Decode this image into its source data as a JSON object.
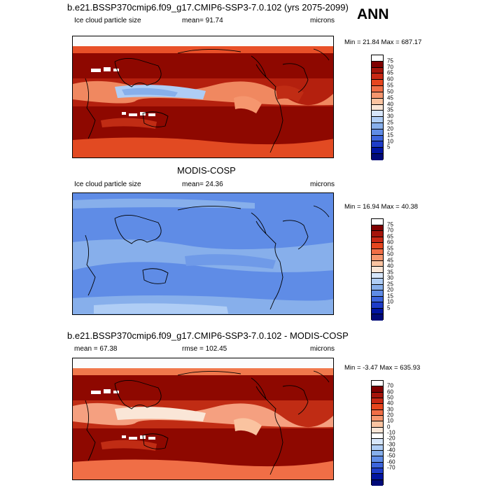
{
  "header": {
    "case_title": "b.e21.BSSP370cmip6.f09_g17.CMIP6-SSP3-7.0.102 (yrs 2075-2099)",
    "season": "ANN"
  },
  "panels": [
    {
      "title": "",
      "variable": "Ice cloud particle size",
      "mean_label": "mean=  91.74",
      "stat2": "",
      "units": "microns",
      "minmax": "Min =  21.84 Max = 687.17",
      "colorbar_labels": [
        "75",
        "70",
        "65",
        "60",
        "55",
        "50",
        "45",
        "40",
        "35",
        "30",
        "25",
        "20",
        "15",
        "10",
        "5"
      ]
    },
    {
      "title": "MODIS-COSP",
      "variable": "Ice cloud particle size",
      "mean_label": "mean=  24.36",
      "stat2": "",
      "units": "microns",
      "minmax": "Min =  16.94 Max =  40.38",
      "colorbar_labels": [
        "75",
        "70",
        "65",
        "60",
        "55",
        "50",
        "45",
        "40",
        "35",
        "30",
        "25",
        "20",
        "15",
        "10",
        "5"
      ]
    },
    {
      "title": "b.e21.BSSP370cmip6.f09_g17.CMIP6-SSP3-7.0.102 - MODIS-COSP",
      "variable": "",
      "mean_label": "mean =  67.38",
      "stat2": "rmse = 102.45",
      "units": "microns",
      "minmax": "Min =  -3.47 Max = 635.93",
      "colorbar_labels": [
        "70",
        "60",
        "50",
        "40",
        "30",
        "20",
        "10",
        "0",
        "-10",
        "-20",
        "-30",
        "-40",
        "-50",
        "-60",
        "-70"
      ]
    }
  ],
  "colors": {
    "abs_scale": [
      "#ffffff",
      "#7f0000",
      "#a5140a",
      "#c82814",
      "#e6461e",
      "#f06e46",
      "#f5966e",
      "#fac3a0",
      "#fae6d7",
      "#d7e6fa",
      "#afcdf5",
      "#87afeb",
      "#5f8ce6",
      "#3c64dc",
      "#1e3cc8",
      "#0014a0",
      "#000a78"
    ],
    "diff_scale": [
      "#ffffff",
      "#7f0000",
      "#a5140a",
      "#c82814",
      "#e6461e",
      "#f06e46",
      "#f5966e",
      "#fac3a0",
      "#fae6d7",
      "#ffffff",
      "#d7e6fa",
      "#afcdf5",
      "#87afeb",
      "#5f8ce6",
      "#3c64dc",
      "#1e3cc8",
      "#0014a0",
      "#000a78"
    ]
  }
}
